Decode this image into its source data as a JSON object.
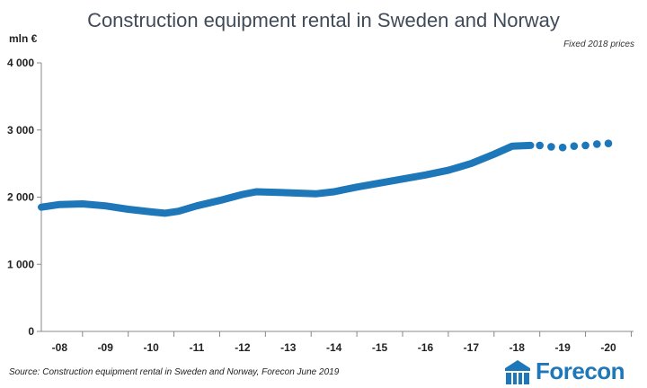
{
  "chart_data": {
    "type": "line",
    "title": "Construction equipment rental in Sweden and Norway",
    "subtitle": "Fixed 2018 prices",
    "ylabel": "mln €",
    "ylim": [
      0,
      4000
    ],
    "yticks": [
      0,
      1000,
      2000,
      3000,
      4000
    ],
    "ytick_labels": [
      "0",
      "1 000",
      "2 000",
      "3 000",
      "4 000"
    ],
    "xticks": [
      2008,
      2009,
      2010,
      2011,
      2012,
      2013,
      2014,
      2015,
      2016,
      2017,
      2018,
      2019,
      2020
    ],
    "xtick_labels": [
      "-08",
      "-09",
      "-10",
      "-11",
      "-12",
      "-13",
      "-14",
      "-15",
      "-16",
      "-17",
      "-18",
      "-19",
      "-20"
    ],
    "grid": false,
    "legend": "none",
    "color": "#1e77b8",
    "series": [
      {
        "style": "solid",
        "x": [
          2007.6,
          2008.0,
          2008.5,
          2009.0,
          2009.5,
          2010.0,
          2010.3,
          2010.6,
          2011.0,
          2011.5,
          2012.0,
          2012.3,
          2012.8,
          2013.2,
          2013.6,
          2014.0,
          2014.5,
          2015.0,
          2015.5,
          2016.0,
          2016.5,
          2017.0,
          2017.5,
          2017.9,
          2018.3
        ],
        "y": [
          1850,
          1890,
          1900,
          1870,
          1820,
          1780,
          1760,
          1790,
          1870,
          1950,
          2040,
          2080,
          2070,
          2060,
          2050,
          2080,
          2150,
          2210,
          2270,
          2330,
          2400,
          2500,
          2640,
          2760,
          2770
        ]
      },
      {
        "style": "dotted",
        "x": [
          2018.5,
          2018.75,
          2019.0,
          2019.25,
          2019.5,
          2019.75,
          2020.0
        ],
        "y": [
          2770,
          2750,
          2740,
          2760,
          2770,
          2790,
          2800
        ]
      }
    ]
  },
  "footer": {
    "source": "Source:  Construction equipment rental in Sweden and Norway, Forecon June 2019",
    "logo_text": "Forecon"
  }
}
